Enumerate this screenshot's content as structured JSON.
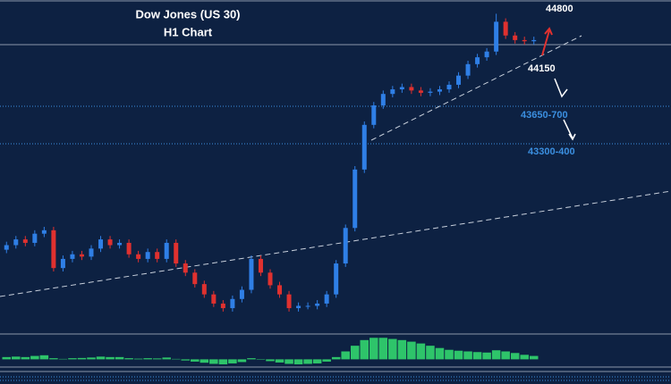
{
  "chart_data": {
    "type": "candlestick",
    "title": "Dow Jones (US 30)",
    "subtitle": "H1 Chart",
    "annotations": [
      "44800",
      "44150",
      "43650-700",
      "43300-400"
    ],
    "ylim": [
      41700,
      44600
    ],
    "up_color": "#2f7fe6",
    "down_color": "#e0312f",
    "open": [
      42420,
      42460,
      42510,
      42480,
      42560,
      42590,
      42260,
      42340,
      42380,
      42360,
      42430,
      42510,
      42460,
      42480,
      42380,
      42340,
      42400,
      42340,
      42480,
      42300,
      42220,
      42120,
      42030,
      41950,
      41910,
      41990,
      42070,
      42340,
      42220,
      42110,
      42030,
      41910,
      41930,
      41930,
      41950,
      42030,
      42300,
      42610,
      43120,
      43510,
      43680,
      43780,
      43820,
      43840,
      43810,
      43790,
      43800,
      43820,
      43860,
      43940,
      44040,
      44100,
      44150,
      44410,
      44290,
      44250,
      44240
    ],
    "high": [
      42490,
      42540,
      42540,
      42590,
      42620,
      42620,
      42370,
      42410,
      42410,
      42460,
      42540,
      42540,
      42510,
      42510,
      42410,
      42430,
      42430,
      42510,
      42510,
      42330,
      42250,
      42150,
      42060,
      41980,
      42020,
      42100,
      42370,
      42370,
      42250,
      42140,
      42060,
      41960,
      41960,
      41980,
      42060,
      42330,
      42640,
      43150,
      43540,
      43710,
      43810,
      43850,
      43870,
      43870,
      43840,
      43830,
      43850,
      43890,
      43970,
      44070,
      44130,
      44180,
      44480,
      44440,
      44320,
      44280,
      44280
    ],
    "low": [
      42390,
      42430,
      42450,
      42450,
      42530,
      42230,
      42230,
      42310,
      42330,
      42330,
      42400,
      42430,
      42430,
      42350,
      42310,
      42310,
      42310,
      42310,
      42270,
      42190,
      42090,
      42000,
      41920,
      41880,
      41880,
      41960,
      42040,
      42190,
      42080,
      42000,
      41880,
      41880,
      41900,
      41900,
      41920,
      42000,
      42270,
      42580,
      43090,
      43480,
      43650,
      43750,
      43790,
      43780,
      43760,
      43760,
      43770,
      43790,
      43830,
      43910,
      44010,
      44070,
      44120,
      44260,
      44220,
      44210,
      44210
    ],
    "close": [
      42460,
      42510,
      42480,
      42560,
      42590,
      42260,
      42340,
      42380,
      42360,
      42430,
      42510,
      42460,
      42480,
      42380,
      42340,
      42400,
      42340,
      42480,
      42300,
      42220,
      42120,
      42030,
      41950,
      41910,
      41990,
      42070,
      42340,
      42220,
      42110,
      42030,
      41910,
      41930,
      41930,
      41950,
      42030,
      42300,
      42610,
      43120,
      43510,
      43680,
      43780,
      43820,
      43840,
      43810,
      43790,
      43800,
      43820,
      43860,
      43940,
      44040,
      44100,
      44150,
      44410,
      44290,
      44250,
      44240,
      44250
    ],
    "indicator": {
      "type": "bar",
      "color": "#2ec46a",
      "ylim": [
        -0.3,
        1
      ],
      "values": [
        0.1,
        0.12,
        0.1,
        0.15,
        0.18,
        0.05,
        0.02,
        0.05,
        0.06,
        0.08,
        0.12,
        0.1,
        0.1,
        0.05,
        0.03,
        0.05,
        0.04,
        0.08,
        0.02,
        -0.05,
        -0.1,
        -0.15,
        -0.2,
        -0.22,
        -0.18,
        -0.12,
        0.05,
        0,
        -0.08,
        -0.14,
        -0.2,
        -0.22,
        -0.2,
        -0.18,
        -0.1,
        0.1,
        0.35,
        0.6,
        0.85,
        0.95,
        0.95,
        0.9,
        0.85,
        0.78,
        0.7,
        0.6,
        0.5,
        0.42,
        0.38,
        0.35,
        0.32,
        0.3,
        0.4,
        0.35,
        0.28,
        0.2,
        0.15
      ]
    }
  }
}
